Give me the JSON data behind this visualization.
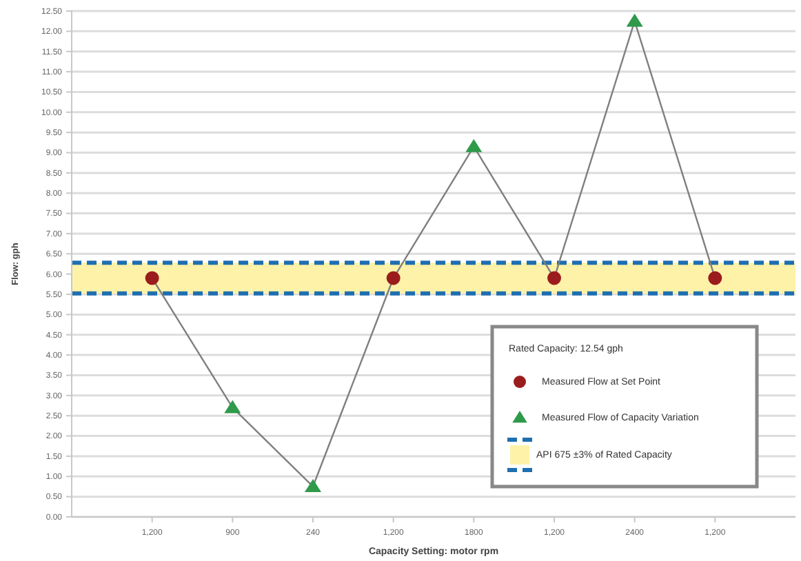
{
  "chart_data": {
    "type": "line",
    "xlabel": "Capacity Setting: motor rpm",
    "ylabel": "Flow: gph",
    "legend_title": "Rated Capacity: 12.54 gph",
    "categories": [
      "1,200",
      "900",
      "240",
      "1,200",
      "1800",
      "1,200",
      "2400",
      "1,200"
    ],
    "series": [
      {
        "color": "#7f7f7f",
        "marker": "none",
        "values": [
          5.9,
          2.7,
          0.75,
          5.9,
          9.15,
          5.9,
          12.25,
          5.9
        ]
      },
      {
        "type": "scatter",
        "name": "Measured Flow at Set Point",
        "color": "#9b1c1c",
        "marker": "circle",
        "values": [
          5.9,
          null,
          null,
          5.9,
          null,
          5.9,
          null,
          5.9
        ]
      },
      {
        "type": "scatter",
        "name": "Measured Flow of Capacity Variation",
        "color": "#2e9a4a",
        "marker": "triangle",
        "values": [
          null,
          2.7,
          0.75,
          null,
          9.15,
          null,
          12.25,
          null
        ]
      }
    ],
    "bands": [
      {
        "axis": "y",
        "from": 5.52,
        "to": 6.28,
        "label": "API 675 ±3% of Rated Capacity",
        "color": "#fdf2a8"
      }
    ],
    "ref_lines": [
      {
        "axis": "y",
        "value": 5.52,
        "color": "#1f6fb0",
        "line_style": "dashed"
      },
      {
        "axis": "y",
        "value": 6.28,
        "color": "#1f6fb0",
        "line_style": "dashed"
      }
    ],
    "ylim": [
      0,
      12.5
    ],
    "yticks": [
      {
        "value": 0,
        "label": "0.00"
      },
      {
        "value": 0.5,
        "label": "0.50"
      },
      {
        "value": 1,
        "label": "1.00"
      },
      {
        "value": 1.5,
        "label": "1.50"
      },
      {
        "value": 2,
        "label": "2.00"
      },
      {
        "value": 2.5,
        "label": "2.50"
      },
      {
        "value": 3,
        "label": "3.00"
      },
      {
        "value": 3.5,
        "label": "3.50"
      },
      {
        "value": 4,
        "label": "4.00"
      },
      {
        "value": 4.5,
        "label": "4.50"
      },
      {
        "value": 5,
        "label": "5.00"
      },
      {
        "value": 5.5,
        "label": "5.50"
      },
      {
        "value": 6,
        "label": "6.00"
      },
      {
        "value": 6.5,
        "label": "6.50"
      },
      {
        "value": 7,
        "label": "7.00"
      },
      {
        "value": 7.5,
        "label": "7.50"
      },
      {
        "value": 8,
        "label": "8.00"
      },
      {
        "value": 8.5,
        "label": "8.50"
      },
      {
        "value": 9,
        "label": "9.00"
      },
      {
        "value": 9.5,
        "label": "9.50"
      },
      {
        "value": 10,
        "label": "10.00"
      },
      {
        "value": 10.5,
        "label": "10.50"
      },
      {
        "value": 11,
        "label": "11.00"
      },
      {
        "value": 11.5,
        "label": "11.50"
      },
      {
        "value": 12,
        "label": "12.00"
      },
      {
        "value": 12.5,
        "label": "12.50"
      }
    ],
    "grid": "y",
    "legend": "bottom right"
  }
}
